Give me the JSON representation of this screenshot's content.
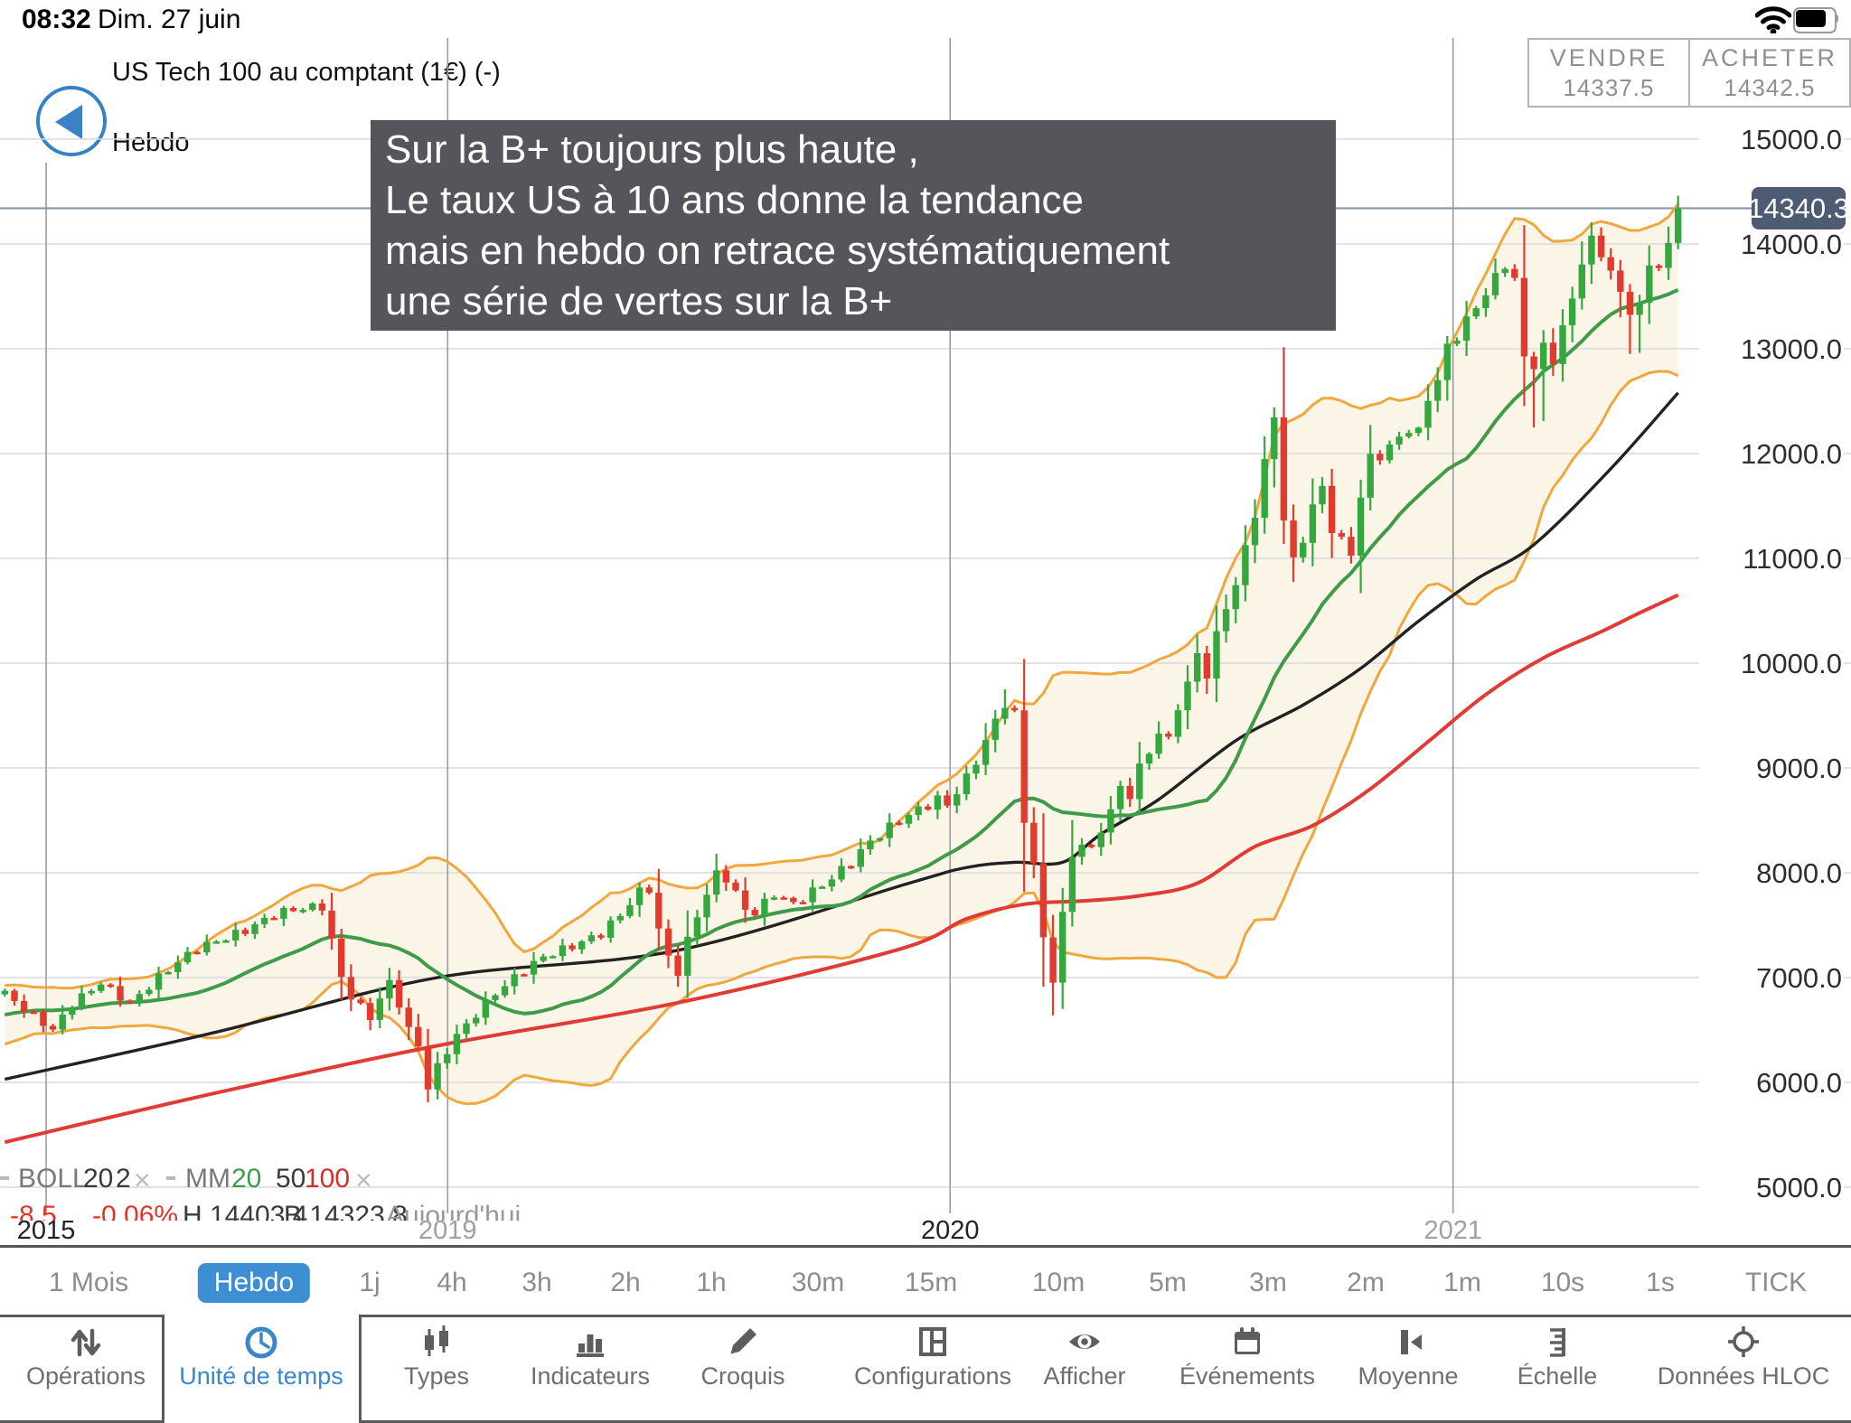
{
  "status_bar": {
    "time": "08:32",
    "date": "Dim. 27 juin"
  },
  "header": {
    "instrument": "US Tech 100 au comptant (1€) (-)",
    "timeframe": "Hebdo"
  },
  "quote_panel": {
    "sell_label": "VENDRE",
    "sell_price": "14337.5",
    "buy_label": "ACHETER",
    "buy_price": "14342.5"
  },
  "annotation": {
    "lines": [
      "Sur la B+ toujours plus haute ,",
      "Le taux US à 10 ans donne la tendance",
      "mais en hebdo on retrace systématiquement",
      "une série de vertes sur la B+"
    ]
  },
  "price_tag": {
    "value": "14340.3"
  },
  "indicator_legend": {
    "boll_name": "BOLL",
    "boll_p1": "20",
    "boll_p2": "2",
    "boll_close": "×",
    "mm_name": "MM",
    "mm_p1": "20",
    "mm_p2": "50",
    "mm_p3": "100",
    "mm_close": "×"
  },
  "values_row": {
    "change": "-8.5",
    "change_pct": "-0.06%",
    "high": "H 14403.4",
    "low": "B 14323.8",
    "session": "Aujourd'hui"
  },
  "timeframes": {
    "selected": "Hebdo",
    "items": [
      "1 Mois",
      "Hebdo",
      "1j",
      "4h",
      "3h",
      "2h",
      "1h",
      "30m",
      "15m",
      "10m",
      "5m",
      "3m",
      "2m",
      "1m",
      "10s",
      "1s",
      "TICK"
    ]
  },
  "toolbar": {
    "items": [
      {
        "label": "Opérations",
        "icon": "operations-arrows-icon"
      },
      {
        "label": "Unité de temps",
        "icon": "clock-icon"
      },
      {
        "label": "Types",
        "icon": "candlestick-types-icon"
      },
      {
        "label": "Indicateurs",
        "icon": "bar-chart-icon"
      },
      {
        "label": "Croquis",
        "icon": "pencil-icon"
      },
      {
        "label": "Configurations",
        "icon": "layout-icon"
      },
      {
        "label": "Afficher",
        "icon": "eye-icon"
      },
      {
        "label": "Événements",
        "icon": "calendar-icon"
      },
      {
        "label": "Moyenne",
        "icon": "average-candle-icon"
      },
      {
        "label": "Échelle",
        "icon": "ruler-icon"
      },
      {
        "label": "Données HLOC",
        "icon": "crosshair-icon"
      }
    ]
  },
  "chart_data": {
    "type": "candlestick",
    "instrument": "US Tech 100 au comptant",
    "period": "weekly",
    "last_price": 14340.3,
    "ylim": [
      4300,
      16300
    ],
    "y_ticks": [
      "15000.0",
      "14000.0",
      "13000.0",
      "12000.0",
      "11000.0",
      "10000.0",
      "9000.0",
      "8000.0",
      "7000.0",
      "6000.0",
      "5000.0"
    ],
    "y_tick_values": [
      15000,
      14000,
      13000,
      12000,
      11000,
      10000,
      9000,
      8000,
      7000,
      6000,
      5000
    ],
    "x_year_labels": [
      {
        "label": "2015",
        "week": 4.3,
        "dark": true
      },
      {
        "label": "2019",
        "week": 46.05,
        "dark": false
      },
      {
        "label": "2020",
        "week": 98.3,
        "dark": true
      },
      {
        "label": "2021",
        "week": 150.6,
        "dark": false
      }
    ],
    "weeks_total": 175,
    "close_anchors": [
      [
        0,
        6850
      ],
      [
        2,
        6700
      ],
      [
        5,
        6500
      ],
      [
        7,
        6750
      ],
      [
        10,
        6950
      ],
      [
        13,
        6750
      ],
      [
        16,
        7000
      ],
      [
        18,
        7150
      ],
      [
        20,
        7280
      ],
      [
        23,
        7380
      ],
      [
        25,
        7450
      ],
      [
        28,
        7600
      ],
      [
        30,
        7650
      ],
      [
        33,
        7680
      ],
      [
        34,
        7350
      ],
      [
        35,
        7000
      ],
      [
        36,
        6820
      ],
      [
        38,
        6620
      ],
      [
        39,
        6800
      ],
      [
        40,
        6950
      ],
      [
        41,
        6750
      ],
      [
        42,
        6500
      ],
      [
        43,
        6350
      ],
      [
        44,
        5950
      ],
      [
        45,
        6150
      ],
      [
        47,
        6450
      ],
      [
        49,
        6650
      ],
      [
        51,
        6850
      ],
      [
        53,
        7000
      ],
      [
        56,
        7200
      ],
      [
        59,
        7300
      ],
      [
        62,
        7420
      ],
      [
        64,
        7600
      ],
      [
        66,
        7820
      ],
      [
        67,
        7850
      ],
      [
        68,
        7450
      ],
      [
        69,
        7200
      ],
      [
        70,
        7050
      ],
      [
        71,
        7350
      ],
      [
        72,
        7600
      ],
      [
        74,
        7990
      ],
      [
        75,
        7950
      ],
      [
        76,
        7800
      ],
      [
        77,
        7650
      ],
      [
        78,
        7620
      ],
      [
        80,
        7800
      ],
      [
        82,
        7700
      ],
      [
        84,
        7820
      ],
      [
        86,
        7950
      ],
      [
        88,
        8100
      ],
      [
        90,
        8300
      ],
      [
        93,
        8500
      ],
      [
        95,
        8600
      ],
      [
        97,
        8700
      ],
      [
        98,
        8650
      ],
      [
        100,
        8900
      ],
      [
        102,
        9250
      ],
      [
        103,
        9450
      ],
      [
        104,
        9620
      ],
      [
        105,
        9500
      ],
      [
        106,
        8500
      ],
      [
        107,
        8100
      ],
      [
        108,
        7350
      ],
      [
        109,
        6990
      ],
      [
        110,
        7600
      ],
      [
        111,
        8150
      ],
      [
        112,
        8300
      ],
      [
        113,
        8200
      ],
      [
        114,
        8420
      ],
      [
        115,
        8600
      ],
      [
        116,
        8800
      ],
      [
        117,
        8750
      ],
      [
        118,
        9000
      ],
      [
        119,
        9150
      ],
      [
        120,
        9350
      ],
      [
        121,
        9250
      ],
      [
        122,
        9600
      ],
      [
        123,
        9800
      ],
      [
        124,
        10080
      ],
      [
        125,
        9900
      ],
      [
        126,
        10250
      ],
      [
        127,
        10550
      ],
      [
        128,
        10750
      ],
      [
        129,
        11080
      ],
      [
        130,
        11450
      ],
      [
        131,
        11900
      ],
      [
        132,
        12350
      ],
      [
        133,
        11400
      ],
      [
        134,
        10950
      ],
      [
        135,
        11200
      ],
      [
        136,
        11500
      ],
      [
        137,
        11660
      ],
      [
        138,
        11300
      ],
      [
        139,
        11150
      ],
      [
        140,
        11050
      ],
      [
        141,
        11600
      ],
      [
        142,
        11940
      ],
      [
        143,
        12000
      ],
      [
        144,
        12050
      ],
      [
        145,
        12150
      ],
      [
        146,
        12250
      ],
      [
        147,
        12180
      ],
      [
        148,
        12550
      ],
      [
        149,
        12700
      ],
      [
        150,
        13000
      ],
      [
        151,
        13150
      ],
      [
        152,
        13250
      ],
      [
        153,
        13400
      ],
      [
        154,
        13550
      ],
      [
        155,
        13650
      ],
      [
        156,
        13830
      ],
      [
        157,
        13650
      ],
      [
        158,
        12900
      ],
      [
        159,
        12870
      ],
      [
        160,
        12990
      ],
      [
        161,
        12890
      ],
      [
        162,
        13240
      ],
      [
        163,
        13420
      ],
      [
        164,
        13880
      ],
      [
        165,
        14030
      ],
      [
        166,
        13870
      ],
      [
        167,
        13800
      ],
      [
        168,
        13470
      ],
      [
        169,
        13380
      ],
      [
        170,
        13430
      ],
      [
        171,
        13750
      ],
      [
        172,
        13770
      ],
      [
        173,
        14010
      ],
      [
        174,
        14340
      ]
    ],
    "wick_lows": {
      "44": 5810,
      "109": 6640,
      "110": 6700,
      "159": 12250,
      "160": 12310,
      "168": 13300,
      "169": 12950,
      "170": 12960,
      "174": 13950
    },
    "wick_highs": {
      "104": 9750,
      "132": 12440,
      "174": 14460
    },
    "bollinger": {
      "period": 20,
      "deviations": 2
    },
    "mm50_anchors": [
      [
        0,
        6030
      ],
      [
        22,
        6480
      ],
      [
        45,
        7000
      ],
      [
        70,
        7260
      ],
      [
        94,
        7900
      ],
      [
        100,
        8050
      ],
      [
        105,
        8100
      ],
      [
        110,
        8100
      ],
      [
        114,
        8370
      ],
      [
        120,
        8700
      ],
      [
        128,
        9260
      ],
      [
        135,
        9600
      ],
      [
        141,
        9950
      ],
      [
        147,
        10400
      ],
      [
        153,
        10800
      ],
      [
        159,
        11130
      ],
      [
        167,
        11855
      ],
      [
        174,
        12580
      ]
    ],
    "mm100_anchors": [
      [
        0,
        5430
      ],
      [
        22,
        5900
      ],
      [
        45,
        6350
      ],
      [
        70,
        6760
      ],
      [
        93,
        7270
      ],
      [
        100,
        7560
      ],
      [
        106,
        7700
      ],
      [
        112,
        7730
      ],
      [
        118,
        7780
      ],
      [
        124,
        7900
      ],
      [
        130,
        8250
      ],
      [
        136,
        8450
      ],
      [
        142,
        8800
      ],
      [
        148,
        9250
      ],
      [
        154,
        9700
      ],
      [
        160,
        10050
      ],
      [
        166,
        10300
      ],
      [
        170,
        10480
      ],
      [
        174,
        10650
      ]
    ],
    "colors": {
      "up": "#35a73f",
      "down": "#e13b30",
      "band_line": "#f0a73d",
      "band_fill": "#faf3e2",
      "mm20": "#3f9b49",
      "mm50": "#222222",
      "mm100": "#e03b35",
      "grid_h": "#d9d9dd",
      "grid_v": "#9b9ba1",
      "price_line": "#8c99a7",
      "tag_bg": "#4d5c72",
      "selected_blue": "#3d8ed2"
    }
  }
}
